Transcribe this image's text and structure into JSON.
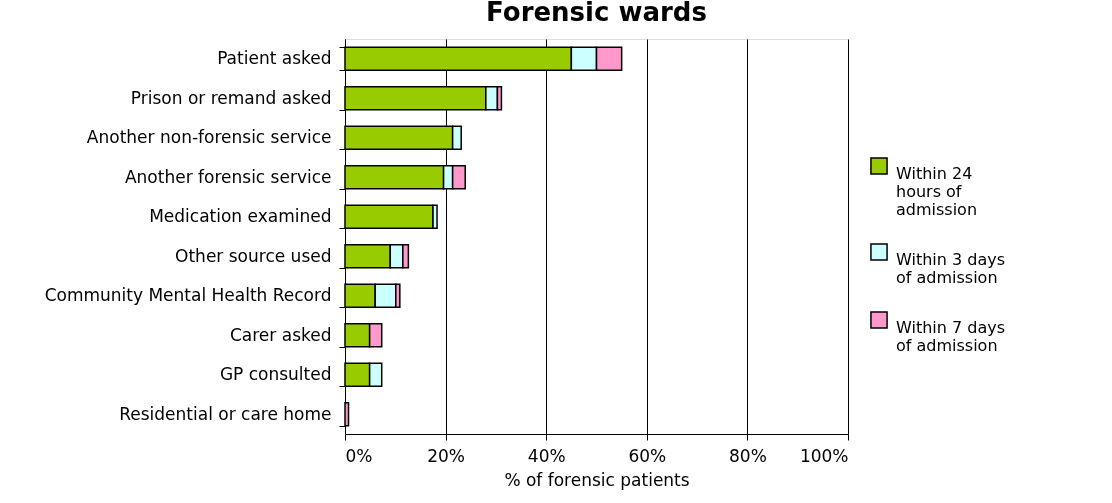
{
  "chart_data": {
    "type": "bar",
    "orientation": "horizontal",
    "stacked": true,
    "title": "Forensic wards",
    "xlabel": "% of forensic patients",
    "categories": [
      "Patient asked",
      "Prison or remand asked",
      "Another non-forensic service",
      "Another forensic service",
      "Medication examined",
      "Other source used",
      "Community Mental Health Record",
      "Carer asked",
      "GP consulted",
      "Residential or care home"
    ],
    "series": [
      {
        "name": "Within 24 hours of admission",
        "color": "#99cc00",
        "values": [
          45,
          28,
          21.4,
          19.6,
          17.5,
          9,
          6,
          4.9,
          4.9,
          0
        ]
      },
      {
        "name": "Within 3 days of admission",
        "color": "#ccffff",
        "values": [
          5,
          2.3,
          1.7,
          1.8,
          0.8,
          2.5,
          4.1,
          0,
          2.4,
          0
        ]
      },
      {
        "name": "Within 7 days of admission",
        "color": "#ff99cc",
        "values": [
          5,
          0.8,
          0,
          2.5,
          0,
          1.1,
          0.8,
          2.4,
          0,
          0.7
        ]
      }
    ],
    "xlim": [
      0,
      100
    ],
    "xticks": [
      {
        "value": 0,
        "label": "0%"
      },
      {
        "value": 20,
        "label": "20%"
      },
      {
        "value": 40,
        "label": "40%"
      },
      {
        "value": 60,
        "label": "60%"
      },
      {
        "value": 80,
        "label": "80%"
      },
      {
        "value": 100,
        "label": "100%"
      }
    ],
    "grid": "x",
    "legend": "right"
  }
}
